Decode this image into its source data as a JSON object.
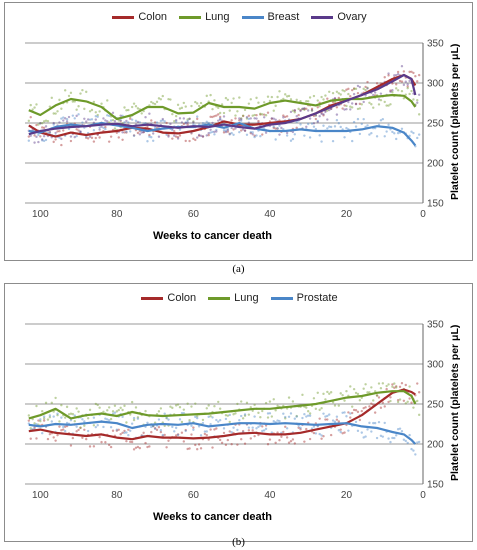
{
  "captions": [
    "(a)",
    "(b)"
  ],
  "colors": {
    "Colon": "#a52a2a",
    "Lung": "#6e9a2a",
    "Breast": "#4a86c8",
    "Prostate": "#4a86c8",
    "Ovary": "#5a3a8a",
    "grid": "#9a9a9a"
  },
  "chart_data": [
    {
      "type": "line",
      "xlabel": "Weeks to cancer death",
      "ylabel": "Platelet count (platelets per μL)",
      "xlim": [
        104,
        0
      ],
      "ylim": [
        150,
        350
      ],
      "xticks": [
        100,
        80,
        60,
        40,
        20,
        0
      ],
      "yticks": [
        150,
        200,
        250,
        300,
        350
      ],
      "grid": true,
      "legend": "top-center",
      "series": [
        {
          "name": "Colon",
          "x": [
            103,
            100,
            96,
            92,
            88,
            84,
            80,
            76,
            72,
            68,
            64,
            60,
            56,
            52,
            48,
            44,
            40,
            36,
            32,
            28,
            24,
            20,
            16,
            12,
            8,
            5,
            3,
            2
          ],
          "values": [
            247,
            238,
            233,
            238,
            235,
            238,
            240,
            244,
            243,
            238,
            237,
            240,
            245,
            252,
            248,
            248,
            250,
            252,
            255,
            262,
            272,
            278,
            285,
            295,
            305,
            310,
            305,
            297
          ]
        },
        {
          "name": "Lung",
          "x": [
            103,
            100,
            96,
            92,
            88,
            84,
            80,
            76,
            72,
            68,
            64,
            60,
            56,
            52,
            48,
            44,
            40,
            36,
            32,
            28,
            24,
            20,
            16,
            12,
            8,
            5,
            3,
            2
          ],
          "values": [
            266,
            260,
            272,
            280,
            277,
            270,
            255,
            260,
            270,
            270,
            262,
            263,
            275,
            270,
            270,
            268,
            275,
            278,
            275,
            272,
            278,
            280,
            280,
            283,
            285,
            284,
            277,
            270
          ]
        },
        {
          "name": "Breast",
          "x": [
            103,
            100,
            96,
            92,
            88,
            84,
            80,
            76,
            72,
            68,
            64,
            60,
            56,
            52,
            48,
            44,
            40,
            36,
            32,
            28,
            24,
            20,
            16,
            12,
            8,
            5,
            3,
            2
          ],
          "values": [
            240,
            238,
            245,
            248,
            246,
            250,
            247,
            244,
            240,
            243,
            245,
            245,
            248,
            244,
            250,
            243,
            240,
            240,
            242,
            240,
            240,
            240,
            242,
            246,
            244,
            238,
            228,
            222
          ]
        },
        {
          "name": "Ovary",
          "x": [
            103,
            100,
            96,
            92,
            88,
            84,
            80,
            76,
            72,
            68,
            64,
            60,
            56,
            52,
            48,
            44,
            40,
            36,
            32,
            28,
            24,
            20,
            16,
            12,
            8,
            5,
            3,
            2
          ],
          "values": [
            236,
            240,
            243,
            245,
            246,
            248,
            249,
            246,
            248,
            246,
            244,
            246,
            245,
            248,
            245,
            243,
            248,
            250,
            255,
            262,
            270,
            278,
            285,
            292,
            302,
            310,
            305,
            285
          ]
        }
      ]
    },
    {
      "type": "line",
      "xlabel": "Weeks to cancer death",
      "ylabel": "Platelet count (platelets per μL)",
      "xlim": [
        104,
        0
      ],
      "ylim": [
        150,
        350
      ],
      "xticks": [
        100,
        80,
        60,
        40,
        20,
        0
      ],
      "yticks": [
        150,
        200,
        250,
        300,
        350
      ],
      "grid": true,
      "legend": "top-center",
      "series": [
        {
          "name": "Colon",
          "x": [
            103,
            100,
            96,
            92,
            88,
            84,
            80,
            76,
            72,
            68,
            64,
            60,
            56,
            52,
            48,
            44,
            40,
            36,
            32,
            28,
            24,
            20,
            16,
            12,
            8,
            5,
            3,
            2
          ],
          "values": [
            216,
            218,
            214,
            212,
            210,
            212,
            208,
            206,
            210,
            208,
            208,
            207,
            208,
            210,
            213,
            214,
            212,
            212,
            214,
            218,
            222,
            226,
            236,
            250,
            264,
            268,
            265,
            262
          ]
        },
        {
          "name": "Lung",
          "x": [
            103,
            100,
            96,
            92,
            88,
            84,
            80,
            76,
            72,
            68,
            64,
            60,
            56,
            52,
            48,
            44,
            40,
            36,
            32,
            28,
            24,
            20,
            16,
            12,
            8,
            5,
            3,
            2
          ],
          "values": [
            232,
            236,
            244,
            232,
            236,
            238,
            235,
            240,
            236,
            235,
            236,
            237,
            238,
            240,
            242,
            244,
            244,
            246,
            248,
            250,
            254,
            258,
            260,
            264,
            266,
            266,
            260,
            250
          ]
        },
        {
          "name": "Prostate",
          "x": [
            103,
            100,
            96,
            92,
            88,
            84,
            80,
            76,
            72,
            68,
            64,
            60,
            56,
            52,
            48,
            44,
            40,
            36,
            32,
            28,
            24,
            20,
            16,
            12,
            8,
            5,
            3,
            2
          ],
          "values": [
            224,
            222,
            225,
            224,
            226,
            228,
            226,
            220,
            224,
            225,
            224,
            226,
            222,
            224,
            226,
            226,
            225,
            226,
            225,
            224,
            225,
            226,
            222,
            220,
            215,
            212,
            205,
            200
          ]
        }
      ]
    }
  ]
}
